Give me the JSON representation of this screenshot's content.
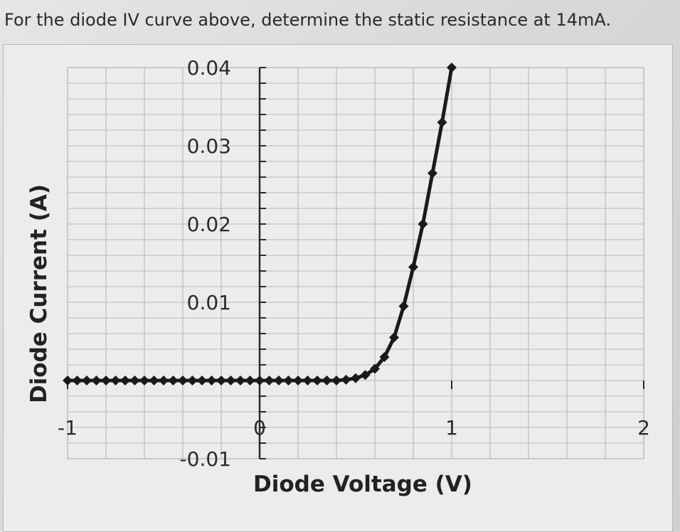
{
  "question": "For the diode IV curve above, determine the static resistance at 14mA.",
  "chart_data": {
    "type": "scatter",
    "title": "",
    "xlabel": "Diode Voltage (V)",
    "ylabel": "Diode Current (A)",
    "xlim": [
      -1,
      2
    ],
    "ylim": [
      -0.01,
      0.04
    ],
    "x_ticks": [
      -1,
      0,
      1,
      2
    ],
    "x_tick_labels": [
      "-1",
      "0",
      "1",
      "2"
    ],
    "y_ticks": [
      0.04,
      0.03,
      0.02,
      0.01,
      -0.01
    ],
    "y_tick_labels": [
      "0.04",
      "0.03",
      "0.02",
      "0.01",
      "-0.01"
    ],
    "grid": true,
    "legend": "none",
    "line_color": "#1a1a1a",
    "series": [
      {
        "x": [
          -1,
          -0.95,
          -0.9,
          -0.85,
          -0.8,
          -0.75,
          -0.7,
          -0.65,
          -0.6,
          -0.55,
          -0.5,
          -0.45,
          -0.4,
          -0.35,
          -0.3,
          -0.25,
          -0.2,
          -0.15,
          -0.1,
          -0.05,
          0,
          0.05,
          0.1,
          0.15,
          0.2,
          0.25,
          0.3,
          0.35,
          0.4,
          0.45,
          0.5,
          0.55,
          0.6,
          0.65,
          0.7,
          0.75,
          0.8,
          0.85,
          0.9,
          0.95,
          1.0
        ],
        "y": [
          0,
          0,
          0,
          0,
          0,
          0,
          0,
          0,
          0,
          0,
          0,
          0,
          0,
          0,
          0,
          0,
          0,
          0,
          0,
          0,
          0,
          0,
          0,
          0,
          0,
          0,
          0,
          0,
          0,
          0.0001,
          0.0003,
          0.0007,
          0.0015,
          0.003,
          0.0055,
          0.0095,
          0.0145,
          0.02,
          0.0265,
          0.033,
          0.04
        ]
      }
    ]
  }
}
